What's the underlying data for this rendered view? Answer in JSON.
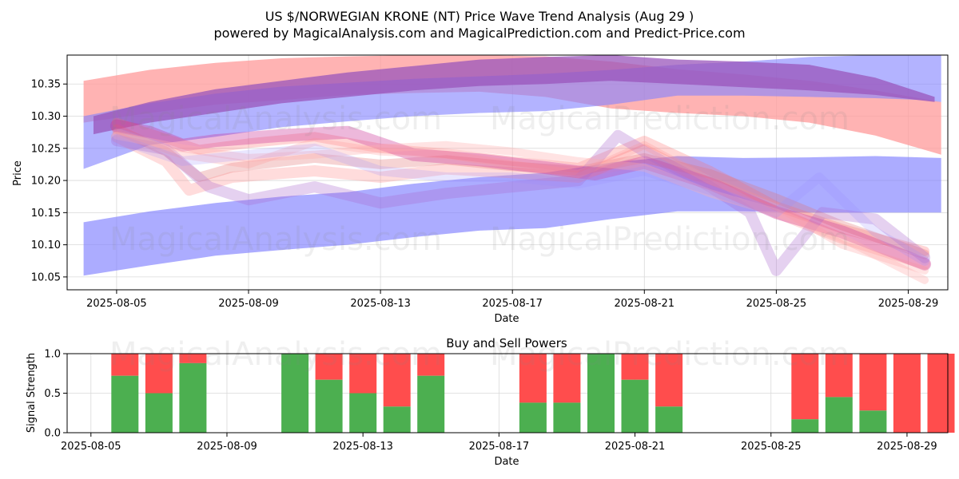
{
  "title_line1": "US $/NORWEGIAN KRONE (NT) Price Wave Trend Analysis (Aug 29 )",
  "title_line2": "powered by MagicalAnalysis.com and MagicalPrediction.com and Predict-Price.com",
  "watermarks": [
    "MagicalAnalysis.com",
    "MagicalPrediction.com"
  ],
  "chart_data": [
    {
      "type": "area",
      "title": "US $/NORWEGIAN KRONE (NT) Price Wave Trend Analysis (Aug 29 )",
      "xlabel": "Date",
      "ylabel": "Price",
      "xlim_day": [
        3.5,
        30.2
      ],
      "ylim": [
        10.03,
        10.395
      ],
      "x_ticks": [
        "2025-08-05",
        "2025-08-09",
        "2025-08-13",
        "2025-08-17",
        "2025-08-21",
        "2025-08-25",
        "2025-08-29"
      ],
      "x_tick_days": [
        5,
        9,
        13,
        17,
        21,
        25,
        29
      ],
      "y_ticks": [
        "10.05",
        "10.10",
        "10.15",
        "10.20",
        "10.25",
        "10.30",
        "10.35"
      ],
      "y_tick_values": [
        10.05,
        10.1,
        10.15,
        10.2,
        10.25,
        10.3,
        10.35
      ],
      "bands": [
        {
          "name": "red-upper-wave",
          "color": "#ff9999",
          "opacity": 0.75,
          "days": [
            4,
            6,
            8,
            10,
            12,
            14,
            16,
            18,
            20,
            22,
            24,
            26,
            28,
            30
          ],
          "lo": [
            10.29,
            10.305,
            10.318,
            10.325,
            10.333,
            10.336,
            10.338,
            10.33,
            10.312,
            10.305,
            10.3,
            10.29,
            10.27,
            10.24
          ],
          "hi": [
            10.355,
            10.372,
            10.383,
            10.39,
            10.393,
            10.395,
            10.395,
            10.393,
            10.385,
            10.373,
            10.365,
            10.355,
            10.34,
            10.322
          ]
        },
        {
          "name": "blue-upper-wave",
          "color": "#8080ff",
          "opacity": 0.6,
          "days": [
            4,
            6,
            8,
            10,
            12,
            14,
            16,
            18,
            20,
            22,
            24,
            26,
            28,
            29.5,
            30
          ],
          "lo": [
            10.218,
            10.255,
            10.268,
            10.283,
            10.292,
            10.3,
            10.305,
            10.308,
            10.318,
            10.332,
            10.332,
            10.33,
            10.328,
            10.325,
            10.322
          ],
          "hi": [
            10.3,
            10.32,
            10.335,
            10.346,
            10.352,
            10.358,
            10.362,
            10.366,
            10.372,
            10.38,
            10.385,
            10.392,
            10.395,
            10.395,
            10.395
          ]
        },
        {
          "name": "purple-upper-wave",
          "color": "#9955bb",
          "opacity": 0.75,
          "days": [
            4.3,
            6,
            8,
            10,
            12,
            14,
            16,
            18,
            20,
            22,
            24,
            26,
            28,
            29.8
          ],
          "lo": [
            10.272,
            10.29,
            10.305,
            10.32,
            10.33,
            10.34,
            10.347,
            10.35,
            10.355,
            10.35,
            10.345,
            10.34,
            10.333,
            10.322
          ],
          "hi": [
            10.3,
            10.322,
            10.342,
            10.355,
            10.368,
            10.378,
            10.388,
            10.392,
            10.395,
            10.388,
            10.385,
            10.38,
            10.36,
            10.33
          ]
        },
        {
          "name": "blue-lower-wave",
          "color": "#8080ff",
          "opacity": 0.65,
          "days": [
            4,
            6,
            8,
            10,
            12,
            14,
            16,
            18,
            20,
            22,
            24,
            26,
            28,
            30
          ],
          "lo": [
            10.052,
            10.068,
            10.083,
            10.092,
            10.1,
            10.112,
            10.122,
            10.126,
            10.14,
            10.152,
            10.152,
            10.15,
            10.15,
            10.15
          ],
          "hi": [
            10.135,
            10.152,
            10.165,
            10.175,
            10.182,
            10.195,
            10.205,
            10.212,
            10.228,
            10.238,
            10.235,
            10.236,
            10.238,
            10.235
          ]
        }
      ],
      "waves": [
        {
          "color": "#e07070",
          "opacity": 0.3,
          "width": 12,
          "days": [
            5,
            6.5,
            7.5,
            8.5,
            11,
            13,
            15,
            17,
            19,
            21,
            23,
            25,
            27,
            29.5
          ],
          "values": [
            10.28,
            10.245,
            10.205,
            10.22,
            10.235,
            10.225,
            10.232,
            10.222,
            10.215,
            10.235,
            10.21,
            10.172,
            10.13,
            10.085
          ]
        },
        {
          "color": "#ff8080",
          "opacity": 0.28,
          "width": 14,
          "days": [
            5,
            6.5,
            7.2,
            8.5,
            11,
            13,
            15,
            17,
            19,
            21,
            23,
            25,
            27,
            29.5
          ],
          "values": [
            10.268,
            10.23,
            10.185,
            10.205,
            10.215,
            10.205,
            10.218,
            10.212,
            10.205,
            10.248,
            10.195,
            10.15,
            10.11,
            10.07
          ]
        },
        {
          "color": "#ff6a6a",
          "opacity": 0.28,
          "width": 12,
          "days": [
            5,
            6.5,
            7.5,
            9,
            11,
            13,
            15,
            17,
            19,
            21,
            23,
            25,
            27,
            29.5
          ],
          "values": [
            10.29,
            10.265,
            10.248,
            10.258,
            10.268,
            10.25,
            10.242,
            10.23,
            10.22,
            10.262,
            10.215,
            10.16,
            10.125,
            10.09
          ]
        },
        {
          "color": "#cc3399",
          "opacity": 0.35,
          "width": 16,
          "days": [
            5,
            6,
            7,
            8,
            10,
            12,
            14,
            16,
            18,
            19.5,
            21,
            23,
            25,
            27,
            29.5
          ],
          "values": [
            10.285,
            10.275,
            10.255,
            10.262,
            10.27,
            10.275,
            10.24,
            10.232,
            10.22,
            10.21,
            10.228,
            10.195,
            10.15,
            10.12,
            10.07
          ]
        },
        {
          "color": "#aa66cc",
          "opacity": 0.3,
          "width": 14,
          "days": [
            5,
            6.5,
            7.8,
            9,
            11,
            13,
            15,
            17,
            19,
            20.2,
            21,
            23,
            24.2,
            25,
            26.4,
            28,
            29.5
          ],
          "values": [
            10.262,
            10.248,
            10.19,
            10.17,
            10.19,
            10.165,
            10.18,
            10.19,
            10.2,
            10.27,
            10.245,
            10.19,
            10.15,
            10.06,
            10.15,
            10.14,
            10.08
          ]
        },
        {
          "color": "#ff9090",
          "opacity": 0.25,
          "width": 10,
          "days": [
            5,
            7,
            9,
            11,
            13,
            15,
            17,
            19,
            21,
            23,
            25,
            27,
            29.5
          ],
          "values": [
            10.275,
            10.24,
            10.225,
            10.26,
            10.245,
            10.24,
            10.225,
            10.21,
            10.255,
            10.2,
            10.16,
            10.1,
            10.06
          ]
        },
        {
          "color": "#ffb0b0",
          "opacity": 0.35,
          "width": 10,
          "days": [
            5,
            7,
            9,
            11,
            13,
            15,
            17,
            19,
            21,
            23,
            25,
            27,
            29.5
          ],
          "values": [
            10.27,
            10.25,
            10.235,
            10.24,
            10.25,
            10.255,
            10.245,
            10.23,
            10.22,
            10.18,
            10.15,
            10.11,
            10.045
          ]
        },
        {
          "color": "#9a8cff",
          "opacity": 0.22,
          "width": 12,
          "days": [
            5,
            7,
            9,
            11,
            13,
            15,
            17,
            19,
            21,
            23,
            25,
            26.3,
            28,
            29.5
          ],
          "values": [
            10.265,
            10.23,
            10.24,
            10.25,
            10.215,
            10.205,
            10.205,
            10.195,
            10.215,
            10.185,
            10.15,
            10.205,
            10.12,
            10.075
          ]
        }
      ]
    },
    {
      "type": "bar",
      "title": "Buy and Sell Powers",
      "xlabel": "Date",
      "ylabel": "Signal Strength",
      "xlim_day": [
        4.3,
        30.2
      ],
      "ylim": [
        0,
        1
      ],
      "x_ticks": [
        "2025-08-05",
        "2025-08-09",
        "2025-08-13",
        "2025-08-17",
        "2025-08-21",
        "2025-08-25",
        "2025-08-29"
      ],
      "x_tick_days": [
        5,
        9,
        13,
        17,
        21,
        25,
        29
      ],
      "y_ticks": [
        "0.0",
        "0.5",
        "1.0"
      ],
      "y_tick_values": [
        0,
        0.5,
        1.0
      ],
      "buy_color": "#4caf50",
      "sell_color": "#ff4d4d",
      "bars": [
        {
          "day": 6,
          "buy": 0.72
        },
        {
          "day": 7,
          "buy": 0.5
        },
        {
          "day": 8,
          "buy": 0.88
        },
        {
          "day": 11,
          "buy": 1.0
        },
        {
          "day": 12,
          "buy": 0.67
        },
        {
          "day": 13,
          "buy": 0.5
        },
        {
          "day": 14,
          "buy": 0.33
        },
        {
          "day": 15,
          "buy": 0.72
        },
        {
          "day": 18,
          "buy": 0.38
        },
        {
          "day": 19,
          "buy": 0.38
        },
        {
          "day": 20,
          "buy": 1.0
        },
        {
          "day": 21,
          "buy": 0.67
        },
        {
          "day": 22,
          "buy": 0.33
        },
        {
          "day": 26,
          "buy": 0.17
        },
        {
          "day": 27,
          "buy": 0.45
        },
        {
          "day": 28,
          "buy": 0.28
        },
        {
          "day": 29,
          "buy": 0.0
        },
        {
          "day": 30,
          "buy": 0.0
        }
      ]
    }
  ]
}
